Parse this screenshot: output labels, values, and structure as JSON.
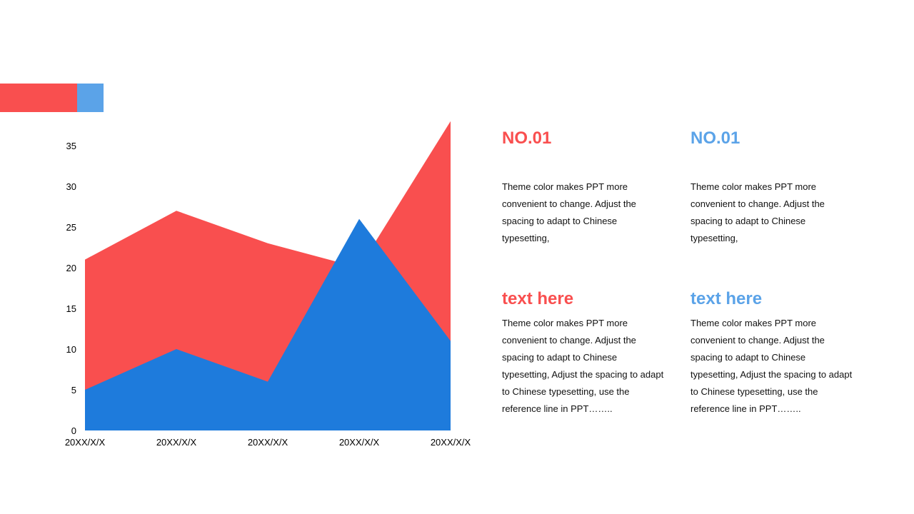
{
  "colors": {
    "red": "#f94f4f",
    "blue": "#1e7bdc",
    "light_blue": "#5ba3e8"
  },
  "chart_data": {
    "type": "area",
    "categories": [
      "20XX/X/X",
      "20XX/X/X",
      "20XX/X/X",
      "20XX/X/X",
      "20XX/X/X"
    ],
    "series": [
      {
        "values": [
          21,
          27,
          23,
          20,
          38
        ],
        "color": "#f94f4f"
      },
      {
        "values": [
          5,
          10,
          6,
          26,
          11
        ],
        "color": "#1e7bdc"
      }
    ],
    "yticks": [
      0,
      5,
      10,
      15,
      20,
      25,
      30,
      35
    ],
    "ylim": [
      0,
      38
    ],
    "grid": false,
    "legend": "none"
  },
  "panels": {
    "col1": {
      "heading": "NO.01",
      "para1": "Theme color makes PPT more convenient  to change. Adjust the spacing to adapt to Chinese typesetting,",
      "subheading": "text here",
      "para2": "Theme color makes PPT more convenient  to change. Adjust the spacing to adapt to Chinese typesetting, Adjust the spacing to adapt to Chinese  typesetting, use the reference line in PPT……..",
      "color": "#f94f4f"
    },
    "col2": {
      "heading": "NO.01",
      "para1": "Theme color makes PPT more convenient  to change. Adjust the spacing to adapt to Chinese typesetting,",
      "subheading": "text here",
      "para2": "Theme color makes PPT more convenient  to change. Adjust the spacing to adapt to Chinese typesetting, Adjust the spacing to adapt to Chinese  typesetting, use the reference line in PPT……..",
      "color": "#5ba3e8"
    }
  }
}
